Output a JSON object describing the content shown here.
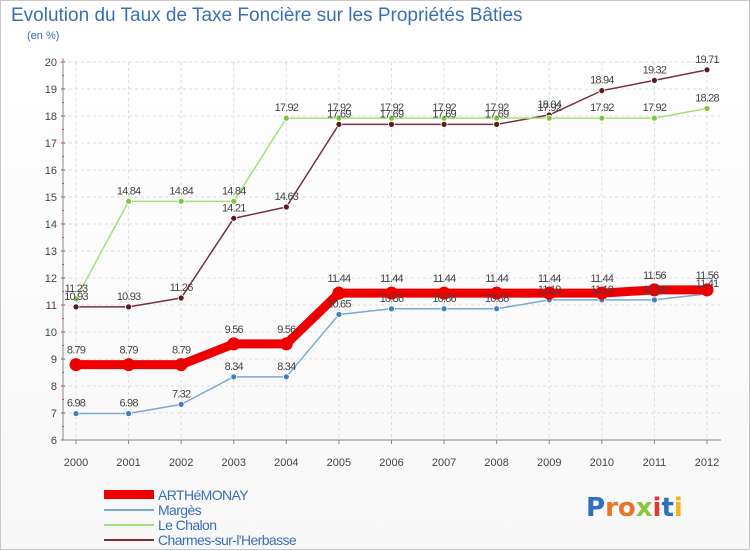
{
  "chart_data": {
    "type": "line",
    "title": "Evolution du Taux de Taxe Foncière sur les Propriétés Bâties",
    "ylabel": "(en %)",
    "xlabel": "",
    "categories": [
      "2000",
      "2001",
      "2002",
      "2003",
      "2004",
      "2005",
      "2006",
      "2007",
      "2008",
      "2009",
      "2010",
      "2011",
      "2012"
    ],
    "ylim": [
      6,
      20
    ],
    "yticks": [
      "6",
      "7",
      "8",
      "9",
      "10",
      "11",
      "12",
      "13",
      "14",
      "15",
      "16",
      "17",
      "18",
      "19",
      "20"
    ],
    "grid": true,
    "legend_position": "bottom-left",
    "series": [
      {
        "name": "ARTHéMONAY",
        "color": "#ee0000",
        "marker": "#ee0000",
        "values": [
          8.79,
          8.79,
          8.79,
          9.56,
          9.56,
          11.44,
          11.44,
          11.44,
          11.44,
          11.44,
          11.44,
          11.56,
          11.56
        ],
        "labels": [
          "8.79",
          "8.79",
          "8.79",
          "9.56",
          "9.56",
          "11.44",
          "11.44",
          "11.44",
          "11.44",
          "11.44",
          "11.44",
          "11.56",
          "11.56"
        ]
      },
      {
        "name": "Margès",
        "color": "#7aa9d4",
        "marker": "#3f7fc0",
        "values": [
          6.98,
          6.98,
          7.32,
          8.34,
          8.34,
          10.65,
          10.86,
          10.86,
          10.86,
          11.19,
          11.19,
          11.19,
          11.41
        ],
        "labels": [
          "6.98",
          "6.98",
          "7.32",
          "8.34",
          "8.34",
          "10.65",
          "10.86",
          "10.86",
          "10.86",
          "11.19",
          "11.19",
          "11.19",
          "11.41"
        ]
      },
      {
        "name": "Le Chalon",
        "color": "#a6e07a",
        "marker": "#7cc63e",
        "values": [
          11.23,
          14.84,
          14.84,
          14.84,
          17.92,
          17.92,
          17.92,
          17.92,
          17.92,
          17.92,
          17.92,
          17.92,
          18.28
        ],
        "labels": [
          "11.23",
          "14.84",
          "14.84",
          "14.84",
          "17.92",
          "17.92",
          "17.92",
          "17.92",
          "17.92",
          "17.92",
          "17.92",
          "17.92",
          "18.28"
        ]
      },
      {
        "name": "Charmes-sur-l'Herbasse",
        "color": "#7a2f3a",
        "marker": "#5a1a22",
        "values": [
          10.93,
          10.93,
          11.26,
          14.21,
          14.63,
          17.69,
          17.69,
          17.69,
          17.69,
          18.04,
          18.94,
          19.32,
          19.71
        ],
        "labels": [
          "10.93",
          "10.93",
          "11.26",
          "14.21",
          "14.63",
          "17.69",
          "17.69",
          "17.69",
          "17.69",
          "18.04",
          "18.94",
          "19.32",
          "19.71"
        ]
      }
    ]
  },
  "logo": {
    "letters": [
      "P",
      "r",
      "o",
      "x",
      "i",
      "t",
      "i"
    ]
  }
}
